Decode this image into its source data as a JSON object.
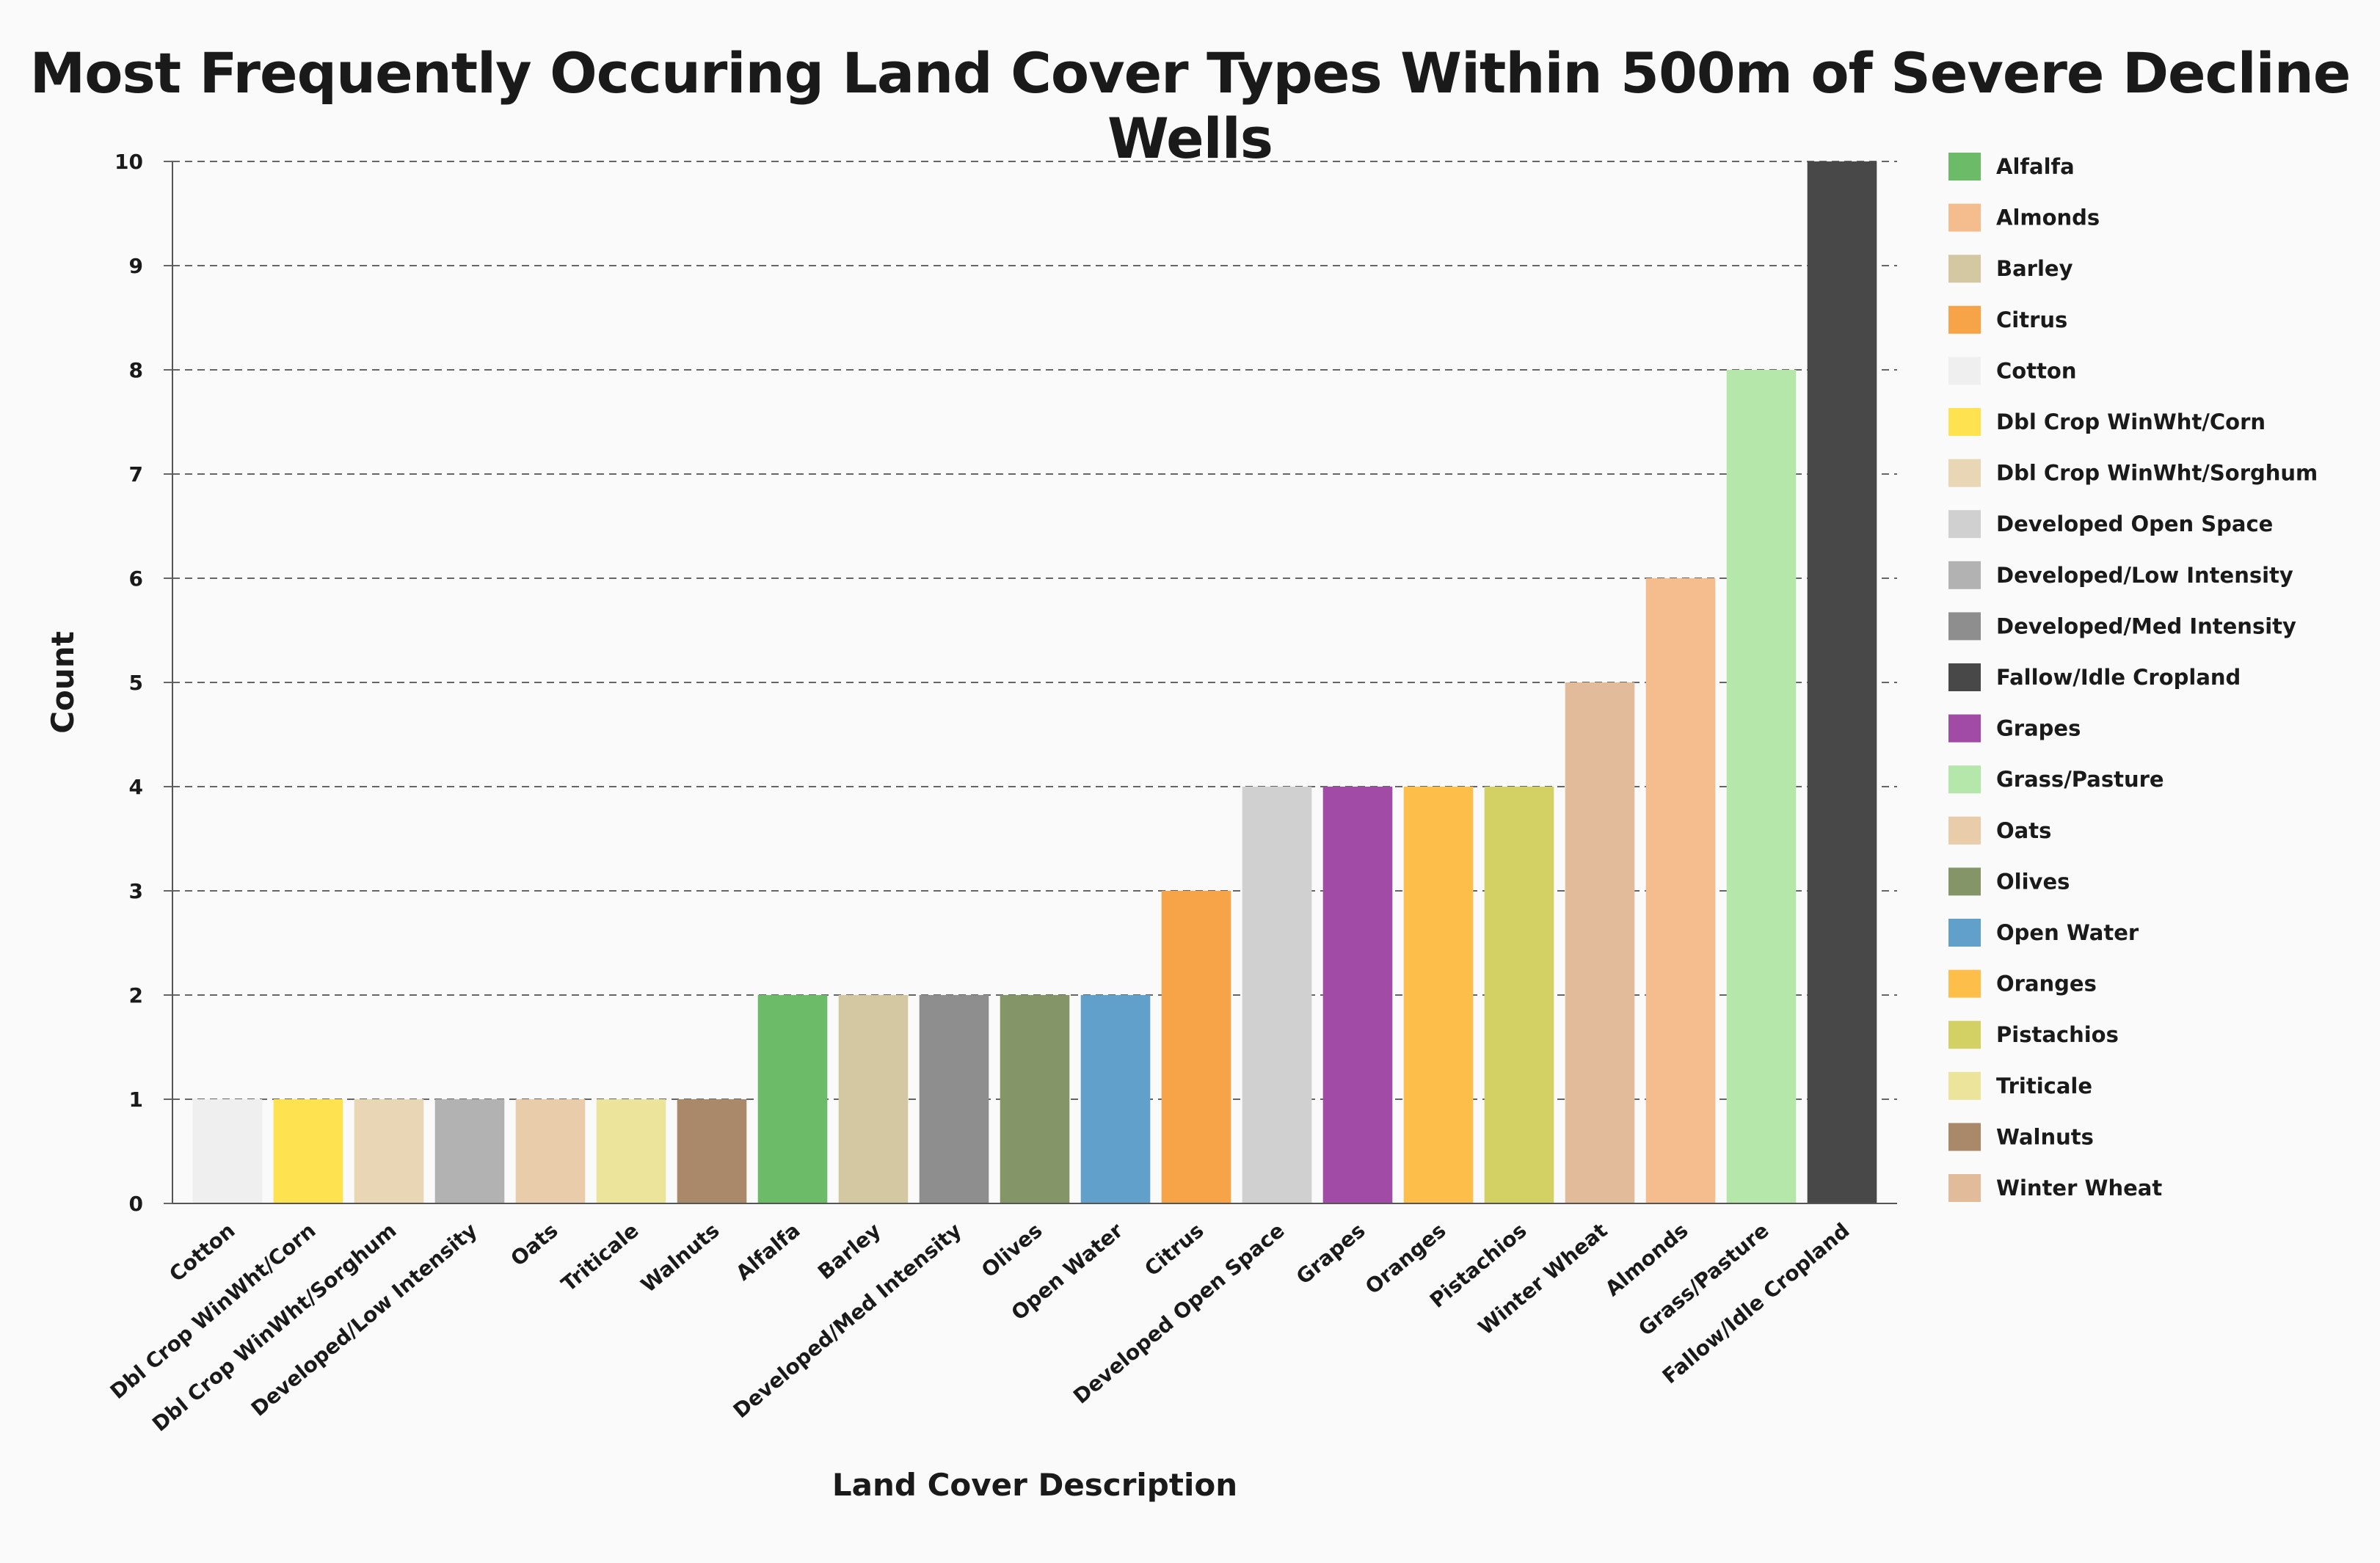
{
  "chart_data": {
    "type": "bar",
    "title": "Most Frequently Occuring Land Cover Types Within 500m of Severe Decline Wells",
    "xlabel": "Land Cover Description",
    "ylabel": "Count",
    "ylim": [
      0,
      10
    ],
    "yticks": [
      0,
      1,
      2,
      3,
      4,
      5,
      6,
      7,
      8,
      9,
      10
    ],
    "grid": true,
    "grid_style": "dashed horizontal",
    "legend_position": "right",
    "categories": [
      "Cotton",
      "Dbl Crop WinWht/Corn",
      "Dbl Crop WinWht/Sorghum",
      "Developed/Low Intensity",
      "Oats",
      "Triticale",
      "Walnuts",
      "Alfalfa",
      "Barley",
      "Developed/Med Intensity",
      "Olives",
      "Open Water",
      "Citrus",
      "Developed Open Space",
      "Grapes",
      "Oranges",
      "Pistachios",
      "Winter Wheat",
      "Almonds",
      "Grass/Pasture",
      "Fallow/Idle Cropland"
    ],
    "values": [
      1,
      1,
      1,
      1,
      1,
      1,
      1,
      2,
      2,
      2,
      2,
      2,
      3,
      4,
      4,
      4,
      4,
      5,
      6,
      8,
      10
    ],
    "legend": [
      {
        "name": "Alfalfa",
        "color": "#6cbb69"
      },
      {
        "name": "Almonds",
        "color": "#f5bd8e"
      },
      {
        "name": "Barley",
        "color": "#d3c8a1"
      },
      {
        "name": "Citrus",
        "color": "#f7a449"
      },
      {
        "name": "Cotton",
        "color": "#efefef"
      },
      {
        "name": "Dbl Crop WinWht/Corn",
        "color": "#ffe24f"
      },
      {
        "name": "Dbl Crop WinWht/Sorghum",
        "color": "#e9d6b5"
      },
      {
        "name": "Developed Open Space",
        "color": "#d0d0d0"
      },
      {
        "name": "Developed/Low Intensity",
        "color": "#b2b2b2"
      },
      {
        "name": "Developed/Med Intensity",
        "color": "#8e8e8e"
      },
      {
        "name": "Fallow/Idle Cropland",
        "color": "#484848"
      },
      {
        "name": "Grapes",
        "color": "#a24ba6"
      },
      {
        "name": "Grass/Pasture",
        "color": "#b6e7aa"
      },
      {
        "name": "Oats",
        "color": "#e9ccaa"
      },
      {
        "name": "Olives",
        "color": "#849568"
      },
      {
        "name": "Open Water",
        "color": "#60a0ca"
      },
      {
        "name": "Oranges",
        "color": "#fdbf4a"
      },
      {
        "name": "Pistachios",
        "color": "#d3d164"
      },
      {
        "name": "Triticale",
        "color": "#ece49a"
      },
      {
        "name": "Walnuts",
        "color": "#aa886a"
      },
      {
        "name": "Winter Wheat",
        "color": "#e2bb9a"
      }
    ]
  }
}
